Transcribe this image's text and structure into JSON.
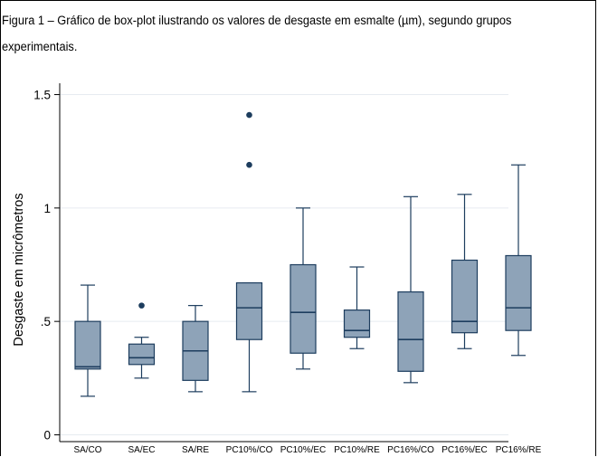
{
  "figure": {
    "caption": "Figura 1 – Gráfico de box-plot ilustrando os valores de desgaste em esmalte (µm), segundo grupos experimentais."
  },
  "chart_data": {
    "type": "box",
    "title": "",
    "xlabel": "",
    "ylabel": "Desgaste em micrômetros",
    "ylim": [
      -0.03,
      1.55
    ],
    "yticks": [
      {
        "value": 0,
        "label": "0"
      },
      {
        "value": 0.5,
        "label": ".5"
      },
      {
        "value": 1,
        "label": "1"
      },
      {
        "value": 1.5,
        "label": "1.5"
      }
    ],
    "grid": true,
    "box_color": "#8ea3b8",
    "line_color": "#1d3d5e",
    "categories": [
      "SA/CO",
      "SA/EC",
      "SA/RE",
      "PC10%/CO",
      "PC10%/EC",
      "PC10%/RE",
      "PC16%/CO",
      "PC16%/EC",
      "PC16%/RE"
    ],
    "boxes": [
      {
        "min": 0.17,
        "q1": 0.29,
        "median": 0.3,
        "q3": 0.5,
        "max": 0.66,
        "outliers": []
      },
      {
        "min": 0.25,
        "q1": 0.31,
        "median": 0.34,
        "q3": 0.4,
        "max": 0.43,
        "outliers": [
          0.57
        ]
      },
      {
        "min": 0.19,
        "q1": 0.24,
        "median": 0.37,
        "q3": 0.5,
        "max": 0.57,
        "outliers": []
      },
      {
        "min": 0.19,
        "q1": 0.42,
        "median": 0.56,
        "q3": 0.67,
        "max": 0.67,
        "outliers": [
          1.19,
          1.41
        ]
      },
      {
        "min": 0.29,
        "q1": 0.36,
        "median": 0.54,
        "q3": 0.75,
        "max": 1.0,
        "outliers": []
      },
      {
        "min": 0.38,
        "q1": 0.43,
        "median": 0.46,
        "q3": 0.55,
        "max": 0.74,
        "outliers": []
      },
      {
        "min": 0.23,
        "q1": 0.28,
        "median": 0.42,
        "q3": 0.63,
        "max": 1.05,
        "outliers": []
      },
      {
        "min": 0.38,
        "q1": 0.45,
        "median": 0.5,
        "q3": 0.77,
        "max": 1.06,
        "outliers": []
      },
      {
        "min": 0.35,
        "q1": 0.46,
        "median": 0.56,
        "q3": 0.79,
        "max": 1.19,
        "outliers": []
      }
    ]
  }
}
